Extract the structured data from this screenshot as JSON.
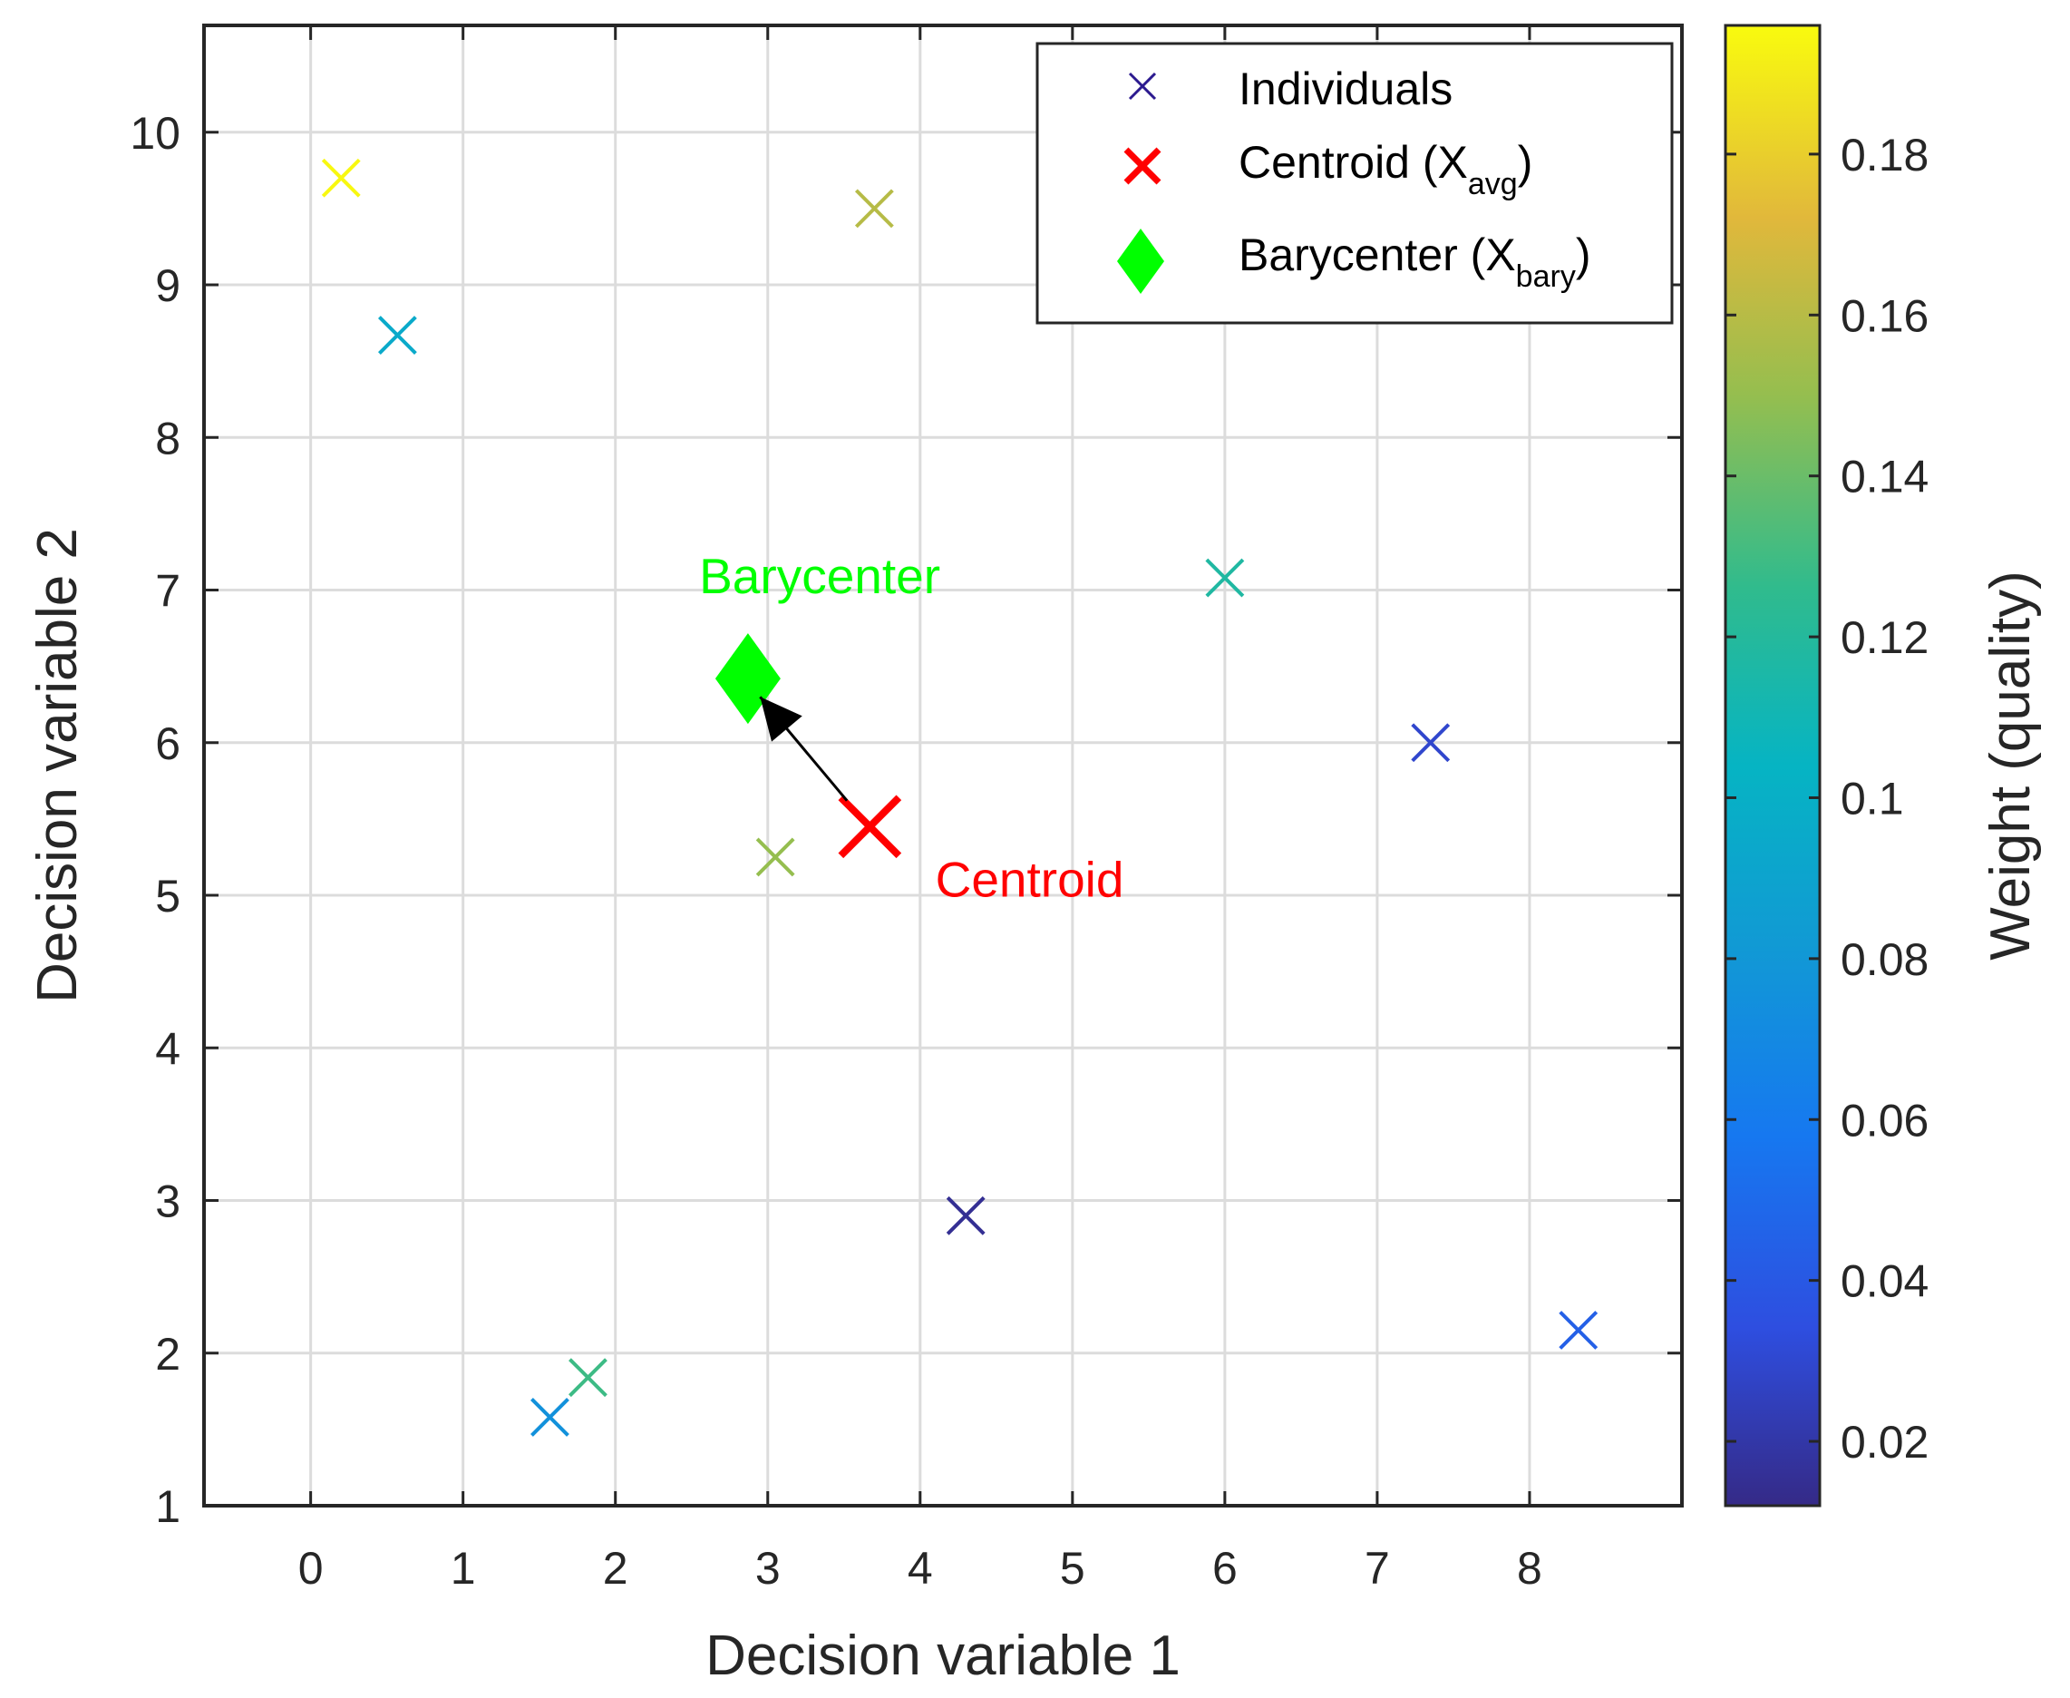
{
  "chart_data": {
    "type": "scatter",
    "xlabel": "Decision variable 1",
    "ylabel": "Decision variable 2",
    "xlim": [
      -0.7,
      9.0
    ],
    "ylim": [
      1.0,
      10.7
    ],
    "xticks": [
      0,
      1,
      2,
      3,
      4,
      5,
      6,
      7,
      8
    ],
    "yticks": [
      1,
      2,
      3,
      4,
      5,
      6,
      7,
      8,
      9,
      10
    ],
    "grid": true,
    "series": [
      {
        "name": "Individuals",
        "marker": "x",
        "points": [
          {
            "x": 0.2,
            "y": 9.7,
            "weight": 0.195
          },
          {
            "x": 3.7,
            "y": 9.5,
            "weight": 0.16
          },
          {
            "x": 0.57,
            "y": 8.67,
            "weight": 0.095
          },
          {
            "x": 6.0,
            "y": 7.08,
            "weight": 0.118
          },
          {
            "x": 7.35,
            "y": 6.0,
            "weight": 0.03
          },
          {
            "x": 3.05,
            "y": 5.25,
            "weight": 0.15
          },
          {
            "x": 4.3,
            "y": 2.9,
            "weight": 0.015
          },
          {
            "x": 8.32,
            "y": 2.15,
            "weight": 0.045
          },
          {
            "x": 1.82,
            "y": 1.84,
            "weight": 0.13
          },
          {
            "x": 1.57,
            "y": 1.58,
            "weight": 0.075
          }
        ]
      },
      {
        "name": "Centroid",
        "marker": "x",
        "color": "#ff0000",
        "points": [
          {
            "x": 3.67,
            "y": 5.45
          }
        ]
      },
      {
        "name": "Barycenter",
        "marker": "diamond",
        "color": "#00ff00",
        "points": [
          {
            "x": 2.87,
            "y": 6.42
          }
        ]
      }
    ],
    "arrow": {
      "from": {
        "x": 3.52,
        "y": 5.62
      },
      "to": {
        "x": 2.95,
        "y": 6.3
      }
    },
    "annotations": [
      {
        "text": "Barycenter",
        "x": 2.55,
        "y": 6.98,
        "color": "#00ff00"
      },
      {
        "text": "Centroid",
        "x": 4.1,
        "y": 4.99,
        "color": "#ff0000"
      }
    ],
    "legend": {
      "position": "top-right",
      "entries": [
        {
          "label": "Individuals",
          "base": "Individuals",
          "sub": "",
          "tail": "",
          "color": "#2c1a8f",
          "marker": "x"
        },
        {
          "label": "Centroid (X_avg)",
          "base": "Centroid (X",
          "sub": "avg",
          "tail": ")",
          "color": "#ff0000",
          "marker": "x"
        },
        {
          "label": "Barycenter (X_bary)",
          "base": "Barycenter (X",
          "sub": "bary",
          "tail": ")",
          "color": "#00ff00",
          "marker": "diamond"
        }
      ]
    },
    "colorbar": {
      "label": "Weight (quality)",
      "range": [
        0.012,
        0.196
      ],
      "ticks": [
        0.02,
        0.04,
        0.06,
        0.08,
        0.1,
        0.12,
        0.14,
        0.16,
        0.18
      ],
      "tick_labels": [
        "0.02",
        "0.04",
        "0.06",
        "0.08",
        "0.1",
        "0.12",
        "0.14",
        "0.16",
        "0.18"
      ],
      "colormap": "parula"
    }
  }
}
